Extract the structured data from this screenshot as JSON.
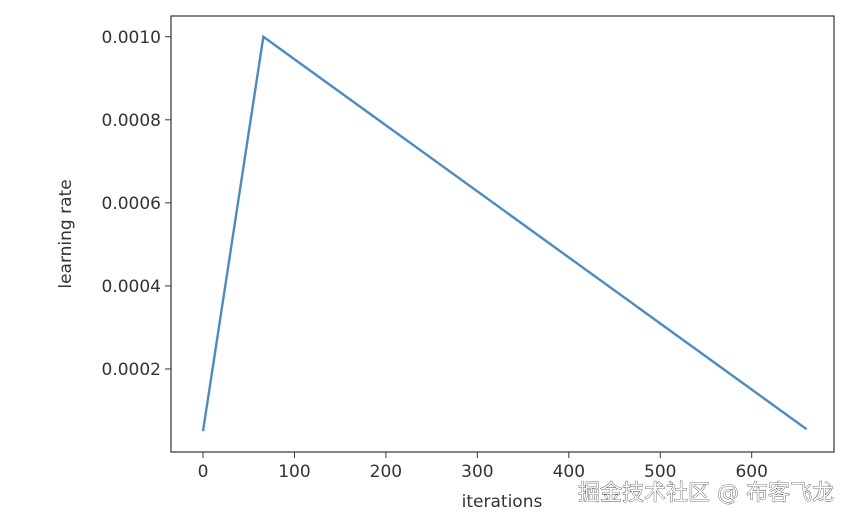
{
  "chart_data": {
    "type": "line",
    "title": "",
    "xlabel": "iterations",
    "ylabel": "learning rate",
    "xlim": [
      -35,
      690
    ],
    "ylim": [
      0.0,
      0.00105
    ],
    "x_ticks": [
      0,
      100,
      200,
      300,
      400,
      500,
      600
    ],
    "y_ticks": [
      0.0002,
      0.0004,
      0.0006,
      0.0008,
      0.001
    ],
    "x_tick_labels": [
      "0",
      "100",
      "200",
      "300",
      "400",
      "500",
      "600"
    ],
    "y_tick_labels": [
      "0.0002",
      "0.0004",
      "0.0006",
      "0.0008",
      "0.0010"
    ],
    "grid": false,
    "legend": "none",
    "series": [
      {
        "color": "#4a8cc2",
        "x": [
          0,
          66,
          660
        ],
        "y": [
          5e-05,
          0.001,
          5.5e-05
        ]
      }
    ]
  },
  "watermark": "掘金技术社区 @ 布客飞龙"
}
